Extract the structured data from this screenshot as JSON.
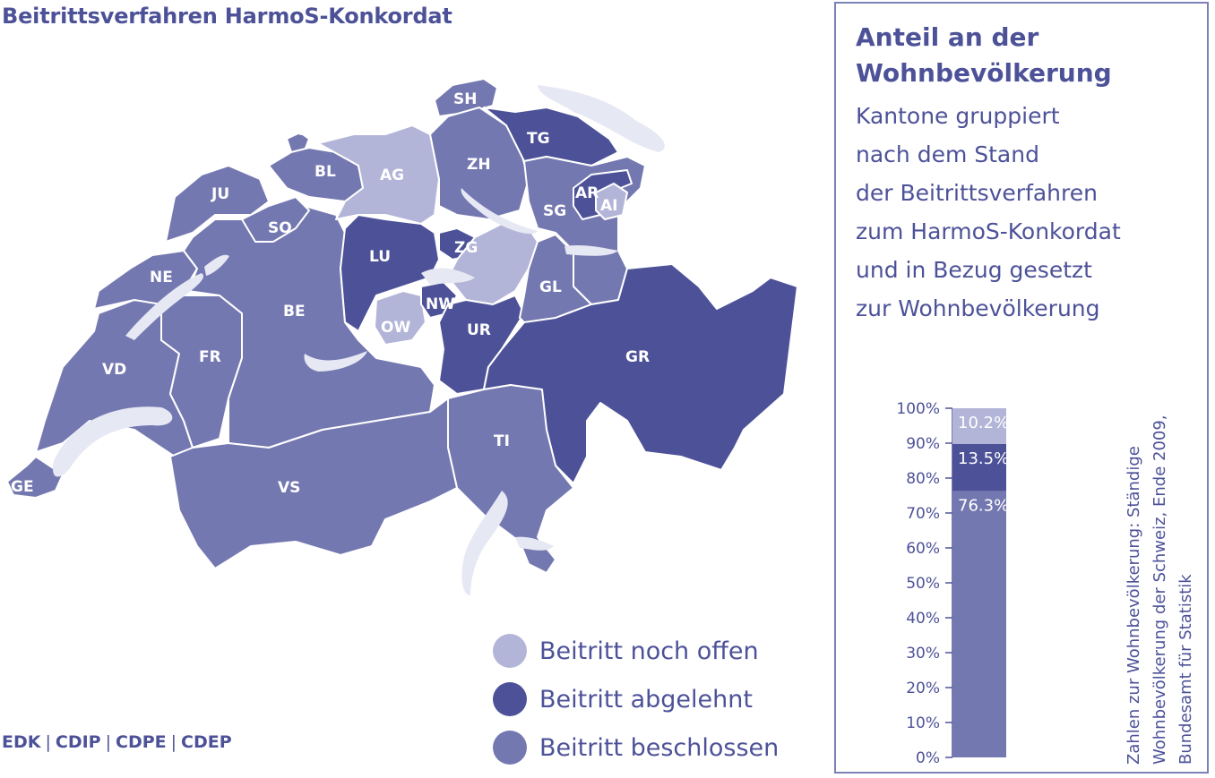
{
  "title": "Beitrittsverfahren HarmoS-Konkordat",
  "colors": {
    "offen": "#b3b5d8",
    "abgelehnt": "#4d5298",
    "beschlossen": "#7478b0",
    "lake": "#e6e8f4",
    "text": "#4d5298"
  },
  "cantons": [
    {
      "code": "SH",
      "status": "beschlossen"
    },
    {
      "code": "BS",
      "status": "beschlossen"
    },
    {
      "code": "TG",
      "status": "abgelehnt"
    },
    {
      "code": "AG",
      "status": "offen"
    },
    {
      "code": "ZH",
      "status": "beschlossen"
    },
    {
      "code": "BL",
      "status": "beschlossen"
    },
    {
      "code": "JU",
      "status": "beschlossen"
    },
    {
      "code": "AR",
      "status": "abgelehnt"
    },
    {
      "code": "AI",
      "status": "offen"
    },
    {
      "code": "SG",
      "status": "beschlossen"
    },
    {
      "code": "SO",
      "status": "beschlossen"
    },
    {
      "code": "ZG",
      "status": "abgelehnt"
    },
    {
      "code": "LU",
      "status": "abgelehnt"
    },
    {
      "code": "NE",
      "status": "beschlossen"
    },
    {
      "code": "GL",
      "status": "beschlossen"
    },
    {
      "code": "BE",
      "status": "beschlossen"
    },
    {
      "code": "NW",
      "status": "abgelehnt"
    },
    {
      "code": "OW",
      "status": "offen"
    },
    {
      "code": "UR",
      "status": "abgelehnt"
    },
    {
      "code": "GR",
      "status": "abgelehnt"
    },
    {
      "code": "VD",
      "status": "beschlossen"
    },
    {
      "code": "FR",
      "status": "beschlossen"
    },
    {
      "code": "TI",
      "status": "beschlossen"
    },
    {
      "code": "VS",
      "status": "beschlossen"
    },
    {
      "code": "GE",
      "status": "beschlossen"
    },
    {
      "code": "SZ",
      "status": "offen"
    }
  ],
  "legend": [
    {
      "label": "Beitritt noch offen",
      "status": "offen"
    },
    {
      "label": "Beitritt abgelehnt",
      "status": "abgelehnt"
    },
    {
      "label": "Beitritt beschlossen",
      "status": "beschlossen"
    }
  ],
  "footer": {
    "items": [
      "EDK",
      "CDIP",
      "CDPE",
      "CDEP"
    ],
    "separator": "|"
  },
  "panel": {
    "title_line1": "Anteil an der",
    "title_line2": "Wohnbevölkerung",
    "subtitle_lines": [
      "Kantone gruppiert",
      "nach dem Stand",
      "der Beitrittsverfahren",
      "zum HarmoS-Konkordat",
      "und in Bezug gesetzt",
      "zur Wohnbevölkerung"
    ],
    "source_lines": [
      "Zahlen zur Wohnbevölkerung: Ständige",
      "Wohnbevölkerung der Schweiz, Ende 2009,",
      "Bundesamt für Statistik"
    ]
  },
  "chart_data": {
    "type": "bar",
    "stacked": true,
    "ylim": [
      0,
      100
    ],
    "yticks": [
      "0%",
      "10%",
      "20%",
      "30%",
      "40%",
      "50%",
      "60%",
      "70%",
      "80%",
      "90%",
      "100%"
    ],
    "series": [
      {
        "status": "beschlossen",
        "value": 76.3,
        "label": "76.3%"
      },
      {
        "status": "abgelehnt",
        "value": 13.5,
        "label": "13.5%"
      },
      {
        "status": "offen",
        "value": 10.2,
        "label": "10.2%"
      }
    ]
  }
}
